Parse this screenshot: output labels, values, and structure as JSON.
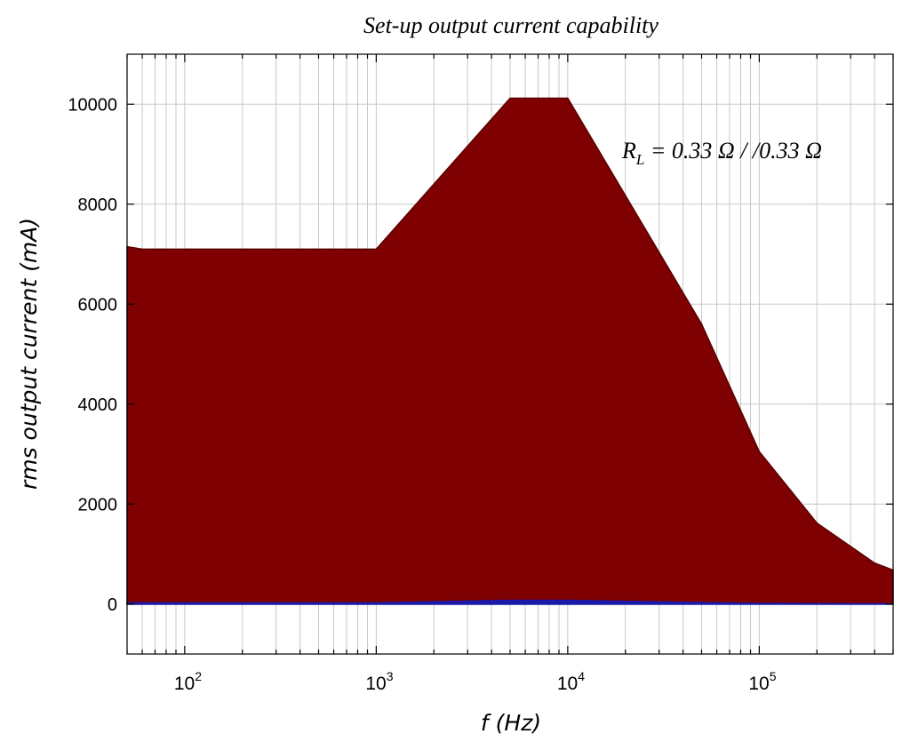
{
  "chart_data": {
    "type": "area",
    "title": "Set-up output current capability",
    "xlabel": "f (Hz)",
    "ylabel": "rms output current  (mA)",
    "x_scale": "log",
    "xlim": [
      50,
      500000
    ],
    "ylim": [
      -1000,
      11000
    ],
    "y_ticks": [
      "0",
      "2000",
      "4000",
      "6000",
      "8000",
      "10000"
    ],
    "x_ticks": [
      {
        "base": "10",
        "exp": "2",
        "value": 100
      },
      {
        "base": "10",
        "exp": "3",
        "value": 1000
      },
      {
        "base": "10",
        "exp": "4",
        "value": 10000
      },
      {
        "base": "10",
        "exp": "5",
        "value": 100000
      }
    ],
    "grid": true,
    "annotation": {
      "R": "R",
      "sub": "L",
      "rest": " = 0.33  Ω / /0.33  Ω"
    },
    "series": [
      {
        "color": "#7e0000",
        "x": [
          50,
          60,
          1000,
          5000,
          10000,
          50000,
          100000,
          200000,
          400000,
          500000
        ],
        "values": [
          7150,
          7100,
          7100,
          10120,
          10120,
          5600,
          3050,
          1620,
          820,
          680
        ]
      },
      {
        "color": "#1a1aa8",
        "x": [
          50,
          1000,
          5000,
          10000,
          50000,
          100000,
          500000
        ],
        "values": [
          20,
          20,
          70,
          70,
          25,
          10,
          0
        ]
      }
    ]
  }
}
